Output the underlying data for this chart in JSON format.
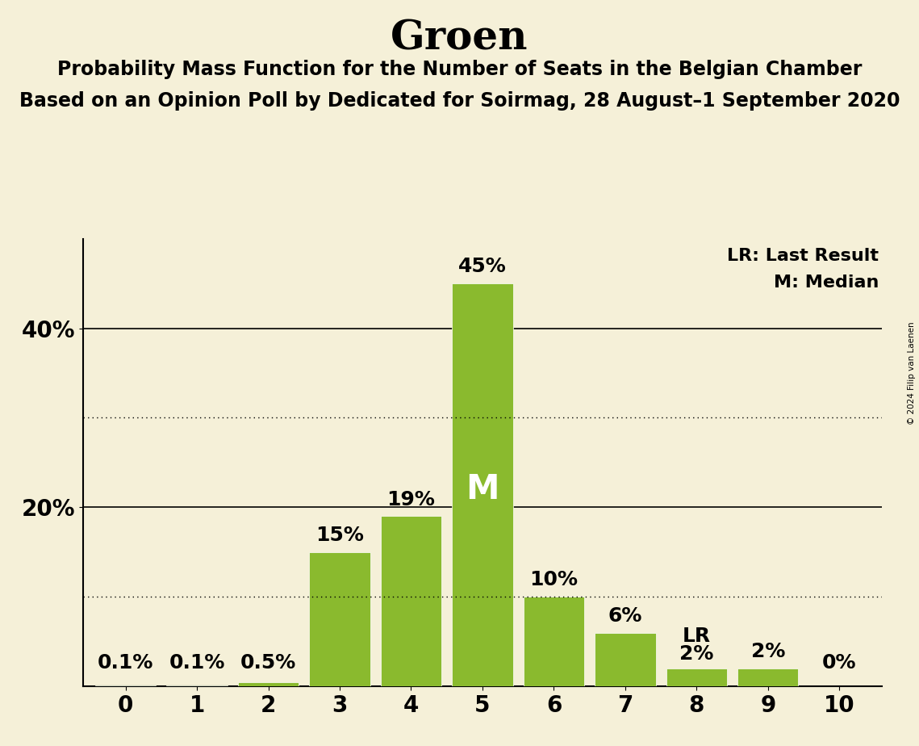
{
  "title": "Groen",
  "subtitle1": "Probability Mass Function for the Number of Seats in the Belgian Chamber",
  "subtitle2": "Based on an Opinion Poll by Dedicated for Soirmag, 28 August–1 September 2020",
  "copyright": "© 2024 Filip van Laenen",
  "categories": [
    0,
    1,
    2,
    3,
    4,
    5,
    6,
    7,
    8,
    9,
    10
  ],
  "values": [
    0.1,
    0.1,
    0.5,
    15,
    19,
    45,
    10,
    6,
    2,
    2,
    0
  ],
  "bar_color": "#8aba2e",
  "background_color": "#f5f0d8",
  "median_bar": 5,
  "lr_bar": 8,
  "ylim": [
    0,
    50
  ],
  "solid_yticks": [
    20,
    40
  ],
  "dotted_yticks": [
    10,
    30
  ],
  "legend_lr": "LR: Last Result",
  "legend_m": "M: Median",
  "title_fontsize": 36,
  "subtitle_fontsize": 17,
  "label_fontsize": 18,
  "tick_fontsize": 20
}
